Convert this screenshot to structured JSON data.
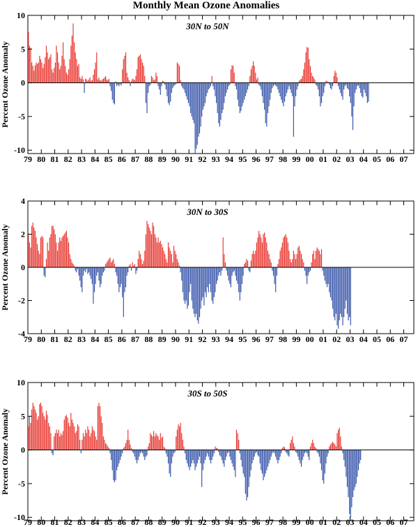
{
  "title": "Monthly Mean Ozone Anomalies",
  "colors": {
    "positive": "#e8362f",
    "negative": "#3553a8",
    "axis": "#000000"
  },
  "chart_data": [
    {
      "type": "bar",
      "title": "30N to 50N",
      "ylabel": "Percent Ozone Anomaly",
      "ylim": [
        -10.5,
        10
      ],
      "yticks": [
        10,
        5,
        0,
        -5,
        -10
      ],
      "xlim": [
        1979.0,
        2007.75
      ],
      "xticks": [
        "79",
        "80",
        "81",
        "82",
        "83",
        "84",
        "85",
        "86",
        "87",
        "88",
        "89",
        "90",
        "91",
        "92",
        "93",
        "94",
        "95",
        "96",
        "97",
        "98",
        "99",
        "00",
        "01",
        "02",
        "03",
        "04",
        "05",
        "06",
        "07"
      ],
      "x_start": "1979-01",
      "x_step": "monthly",
      "values": [
        7.5,
        5.5,
        5.2,
        3.0,
        2.5,
        1.8,
        2.6,
        3.0,
        2.8,
        3.0,
        4.0,
        3.5,
        3.0,
        2.2,
        2.8,
        3.8,
        5.5,
        4.5,
        3.5,
        3.8,
        4.2,
        2.0,
        1.5,
        2.2,
        3.0,
        5.5,
        4.5,
        3.0,
        2.0,
        2.5,
        4.0,
        6.0,
        3.5,
        2.5,
        1.5,
        1.2,
        2.0,
        3.5,
        5.5,
        7.0,
        8.8,
        6.0,
        4.5,
        3.5,
        2.5,
        2.8,
        0.8,
        0.6,
        1.0,
        0.5,
        -1.5,
        0.6,
        0.5,
        0.3,
        0.5,
        0.8,
        0.3,
        0.4,
        1.2,
        2.0,
        3.0,
        4.5,
        0.5,
        0.8,
        0.4,
        0.3,
        0.5,
        0.6,
        0.8,
        1.0,
        0.5,
        0.4,
        0.6,
        -0.5,
        -1.2,
        -2.5,
        -3.0,
        -3.2,
        0.2,
        -0.5,
        -0.3,
        -0.5,
        -0.2,
        -0.4,
        2.0,
        3.5,
        4.0,
        4.5,
        1.5,
        0.8,
        0.4,
        -0.5,
        0.3,
        0.6,
        0.5,
        0.4,
        1.0,
        2.0,
        3.8,
        4.0,
        4.2,
        3.5,
        3.0,
        2.5,
        1.0,
        -3.0,
        -4.5,
        -1.5,
        -0.5,
        -0.3,
        1.0,
        0.8,
        0.4,
        0.5,
        1.5,
        1.0,
        -0.5,
        -1.0,
        -1.8,
        -0.5,
        0.3,
        0.2,
        -0.3,
        -1.0,
        -2.0,
        -3.0,
        -3.3,
        -2.8,
        -1.5,
        -0.8,
        -0.5,
        -0.3,
        -0.2,
        3.0,
        2.8,
        2.5,
        0.4,
        -0.5,
        -0.8,
        -1.0,
        -1.5,
        -2.0,
        -2.5,
        -3.0,
        -3.5,
        -4.5,
        -5.0,
        -5.5,
        -6.0,
        -10.5,
        -9.8,
        -9.2,
        -8.0,
        -7.5,
        -6.5,
        -5.0,
        -4.0,
        -3.5,
        -3.0,
        -2.0,
        -1.5,
        -1.0,
        -0.8,
        -0.5,
        1.0,
        -0.5,
        -1.0,
        -2.0,
        -3.0,
        -4.5,
        -6.0,
        -6.5,
        -5.5,
        -4.5,
        -4.0,
        -3.0,
        -2.0,
        -1.5,
        -1.0,
        -0.5,
        -0.3,
        2.0,
        2.6,
        2.5,
        1.5,
        -0.5,
        -1.0,
        -2.5,
        -3.5,
        -4.5,
        -4.2,
        -3.5,
        -3.0,
        -2.5,
        -2.0,
        -1.5,
        -1.0,
        -0.5,
        1.0,
        2.0,
        2.5,
        3.2,
        2.5,
        1.5,
        0.5,
        0.8,
        -0.3,
        -0.5,
        -1.0,
        -2.0,
        -3.0,
        -4.0,
        -6.0,
        -6.5,
        -4.5,
        -3.5,
        -2.5,
        -1.5,
        -0.8,
        -0.5,
        -0.3,
        -0.4,
        -0.6,
        -1.0,
        -1.5,
        -2.0,
        -2.5,
        -3.0,
        -3.5,
        -2.8,
        -2.0,
        -1.5,
        -1.0,
        -0.5,
        -1.0,
        -1.5,
        -2.0,
        -8.0,
        -3.5,
        -2.0,
        -1.0,
        -0.5,
        0.3,
        0.5,
        0.6,
        1.0,
        2.0,
        3.0,
        4.5,
        5.3,
        5.2,
        3.5,
        2.5,
        1.5,
        1.0,
        0.8,
        0.5,
        -0.3,
        -0.5,
        -1.0,
        -2.0,
        -3.5,
        -3.0,
        -2.0,
        -1.5,
        -0.5,
        0.3,
        0.2,
        0.1,
        -0.3,
        -0.8,
        -1.0,
        -0.5,
        1.0,
        1.8,
        1.5,
        0.8,
        -0.5,
        -1.0,
        -1.5,
        -2.0,
        -2.5,
        -1.0,
        -0.5,
        -0.3,
        -0.8,
        -1.0,
        -2.0,
        -3.0,
        -5.0,
        -7.0,
        -3.5,
        -1.5,
        -1.0,
        -0.5,
        -0.4,
        -0.8,
        -1.5,
        -2.0,
        -2.2,
        -1.0,
        -1.5,
        -2.0,
        -3.0,
        -2.8
      ]
    },
    {
      "type": "bar",
      "title": "30N to 30S",
      "ylabel": "Percent Ozone Anomaly",
      "ylim": [
        -4,
        4
      ],
      "yticks": [
        4,
        2,
        0,
        -2,
        -4
      ],
      "xlim": [
        1979.0,
        2007.75
      ],
      "xticks": [
        "79",
        "80",
        "81",
        "82",
        "83",
        "84",
        "85",
        "86",
        "87",
        "88",
        "89",
        "90",
        "91",
        "92",
        "93",
        "94",
        "95",
        "96",
        "97",
        "98",
        "99",
        "00",
        "01",
        "02",
        "03",
        "04",
        "05",
        "06",
        "07"
      ],
      "x_start": "1979-01",
      "x_step": "monthly",
      "values": [
        2.0,
        1.5,
        1.2,
        2.5,
        2.7,
        2.4,
        2.2,
        1.8,
        1.4,
        1.0,
        0.8,
        1.8,
        1.9,
        1.8,
        -0.5,
        -0.6,
        0.5,
        1.5,
        1.0,
        1.8,
        2.0,
        2.5,
        2.5,
        2.3,
        2.0,
        1.5,
        1.0,
        1.5,
        1.8,
        1.6,
        1.8,
        1.9,
        2.0,
        2.1,
        2.2,
        1.8,
        1.5,
        0.8,
        0.5,
        0.3,
        0.2,
        0.1,
        -0.2,
        -0.3,
        -0.1,
        -0.5,
        -0.8,
        -1.2,
        -1.5,
        -0.5,
        -0.2,
        -0.3,
        -0.1,
        -0.4,
        -0.3,
        -0.5,
        -0.7,
        -1.0,
        -2.2,
        -1.5,
        -1.0,
        -0.5,
        -0.3,
        -0.8,
        -1.2,
        -1.0,
        -0.5,
        -0.3,
        -0.2,
        0.2,
        0.3,
        0.4,
        0.5,
        0.6,
        0.3,
        0.4,
        0.5,
        0.2,
        -0.3,
        -0.5,
        -1.0,
        -1.5,
        -1.2,
        -1.0,
        -1.8,
        -3.0,
        -1.5,
        -1.2,
        -0.5,
        -0.3,
        0.1,
        0.2,
        -0.2,
        0.3,
        0.1,
        0.2,
        -0.4,
        -0.2,
        0.5,
        1.0,
        0.8,
        0.5,
        0.2,
        0.4,
        1.0,
        2.0,
        2.8,
        2.6,
        2.4,
        2.2,
        2.0,
        2.7,
        2.5,
        2.0,
        1.8,
        1.5,
        1.8,
        1.5,
        1.6,
        1.4,
        1.2,
        1.0,
        0.8,
        0.5,
        0.3,
        1.5,
        1.2,
        1.0,
        0.8,
        0.3,
        1.3,
        1.0,
        0.8,
        0.5,
        0.3,
        0.1,
        -0.3,
        -0.8,
        -1.5,
        -2.0,
        -2.2,
        -2.0,
        -2.5,
        -2.3,
        -1.5,
        -1.0,
        -2.0,
        -2.5,
        -2.8,
        -3.0,
        -2.8,
        -3.2,
        -3.4,
        -3.0,
        -2.5,
        -2.0,
        -1.8,
        -2.3,
        -1.5,
        -1.8,
        -1.2,
        -1.5,
        -1.0,
        -1.5,
        -2.0,
        -2.2,
        -1.8,
        -1.5,
        -1.0,
        -0.8,
        -0.5,
        -0.3,
        -0.5,
        -0.2,
        1.8,
        0.8,
        0.3,
        -0.2,
        -0.5,
        -0.8,
        -1.0,
        -1.2,
        -0.5,
        -0.3,
        -0.2,
        -0.5,
        -0.8,
        -1.0,
        -1.5,
        -2.0,
        -1.5,
        -1.0,
        -0.5,
        0.2,
        0.3,
        0.5,
        0.4,
        -0.2,
        -0.3,
        0.4,
        0.8,
        1.0,
        0.8,
        1.0,
        1.5,
        1.8,
        2.2,
        2.0,
        1.8,
        1.5,
        2.0,
        2.1,
        1.8,
        1.5,
        1.0,
        0.8,
        0.5,
        0.3,
        -0.2,
        -0.5,
        -1.0,
        -1.5,
        -0.5,
        0.2,
        0.5,
        1.0,
        1.2,
        1.5,
        1.8,
        1.9,
        2.0,
        1.8,
        1.5,
        1.0,
        0.5,
        0.3,
        0.5,
        1.0,
        0.8,
        0.5,
        0.8,
        1.2,
        1.3,
        1.0,
        0.8,
        0.5,
        0.3,
        -0.2,
        -0.5,
        -1.0,
        -0.5,
        -0.3,
        -0.2,
        0.3,
        0.8,
        1.0,
        0.5,
        1.0,
        1.2,
        1.1,
        1.0,
        0.8,
        1.1,
        -0.2,
        -0.5,
        -0.8,
        -1.0,
        -1.2,
        -1.0,
        -1.5,
        -1.8,
        -2.0,
        -2.5,
        -3.0,
        -3.2,
        -2.8,
        -3.5,
        -3.7,
        -3.2,
        -2.8,
        -3.0,
        -3.5,
        -3.0,
        -2.5,
        -2.0,
        -2.8,
        -3.2,
        -3.0,
        -3.5
      ]
    },
    {
      "type": "bar",
      "title": "30S to 50S",
      "ylabel": "Percent Ozone Anomaly",
      "ylim": [
        -10.5,
        10
      ],
      "yticks": [
        10,
        5,
        0,
        -5,
        -10
      ],
      "xlim": [
        1979.0,
        2007.75
      ],
      "xticks": [
        "79",
        "80",
        "81",
        "82",
        "83",
        "84",
        "85",
        "86",
        "87",
        "88",
        "89",
        "90",
        "91",
        "92",
        "93",
        "94",
        "95",
        "96",
        "97",
        "98",
        "99",
        "00",
        "01",
        "02",
        "03",
        "04",
        "05",
        "06",
        "07"
      ],
      "x_start": "1979-01",
      "x_step": "monthly",
      "values": [
        3.5,
        5.0,
        4.0,
        6.0,
        7.0,
        6.5,
        6.0,
        5.5,
        4.5,
        5.0,
        6.8,
        7.0,
        6.5,
        5.5,
        5.0,
        4.5,
        5.8,
        5.2,
        4.0,
        3.5,
        2.5,
        -0.5,
        -0.8,
        2.0,
        2.5,
        3.0,
        2.5,
        3.0,
        2.0,
        2.5,
        2.2,
        2.8,
        4.5,
        5.0,
        5.2,
        4.8,
        4.0,
        3.5,
        5.5,
        4.5,
        4.0,
        3.5,
        2.5,
        2.8,
        3.8,
        3.5,
        1.5,
        -0.5,
        1.5,
        2.5,
        2.0,
        3.0,
        2.5,
        3.5,
        3.0,
        2.0,
        2.5,
        3.5,
        3.0,
        2.8,
        2.0,
        1.5,
        6.5,
        7.0,
        6.5,
        5.0,
        4.0,
        2.0,
        1.5,
        1.0,
        0.8,
        0.5,
        0.3,
        -0.5,
        -1.5,
        -3.0,
        -4.5,
        -4.8,
        -4.5,
        -3.0,
        -2.5,
        -2.0,
        -1.5,
        -1.0,
        -0.5,
        0.3,
        0.5,
        1.0,
        1.5,
        3.0,
        1.5,
        0.8,
        0.3,
        -0.3,
        -0.5,
        -1.0,
        -1.5,
        -2.0,
        -1.5,
        -1.0,
        -0.5,
        -0.3,
        -0.5,
        -1.0,
        -1.5,
        -1.0,
        -0.8,
        0.5,
        1.0,
        2.5,
        2.2,
        2.0,
        2.8,
        2.0,
        2.5,
        2.2,
        2.0,
        1.5,
        2.5,
        1.8,
        2.0,
        0.5,
        0.3,
        -0.5,
        -1.0,
        -2.0,
        -3.5,
        -4.0,
        -2.0,
        -1.0,
        -0.5,
        -0.3,
        2.0,
        3.0,
        3.8,
        3.5,
        4.0,
        2.5,
        1.5,
        0.5,
        -0.5,
        -1.5,
        -2.0,
        -2.5,
        -3.0,
        -2.5,
        -2.0,
        -1.5,
        -2.0,
        -3.0,
        -2.5,
        -2.0,
        -1.5,
        -1.0,
        -2.0,
        -5.5,
        -3.0,
        -2.0,
        -1.5,
        -1.0,
        -0.5,
        -1.0,
        -1.5,
        -2.0,
        -1.5,
        -1.0,
        -0.5,
        0.5,
        0.3,
        0.2,
        -0.3,
        -0.8,
        -1.0,
        -1.5,
        -2.0,
        -2.5,
        -1.5,
        -1.0,
        -0.5,
        -0.3,
        -1.0,
        -1.5,
        -2.0,
        -2.5,
        -3.0,
        -4.0,
        3.0,
        2.5,
        1.5,
        -0.5,
        -1.5,
        -2.5,
        -3.5,
        -4.0,
        -6.5,
        -7.5,
        -7.0,
        -5.5,
        -4.0,
        -3.0,
        -2.0,
        -1.5,
        -1.0,
        -0.5,
        -0.3,
        -0.8,
        -1.0,
        -2.0,
        -3.0,
        -3.5,
        -4.5,
        -4.0,
        -3.5,
        -3.0,
        -2.5,
        -2.0,
        -1.5,
        -1.0,
        -0.5,
        -0.3,
        -0.5,
        -1.0,
        -1.5,
        -2.0,
        -1.5,
        -1.0,
        -0.5,
        0.3,
        0.5,
        0.4,
        -0.3,
        -0.5,
        -0.8,
        -1.0,
        1.0,
        1.5,
        2.0,
        1.0,
        0.5,
        -0.3,
        -0.5,
        -1.0,
        -1.5,
        -2.0,
        -2.5,
        -1.5,
        -1.0,
        -0.5,
        -0.3,
        -0.5,
        -1.0,
        -1.5,
        0.5,
        1.0,
        1.5,
        1.0,
        0.5,
        0.3,
        -0.3,
        -0.5,
        -1.0,
        -2.0,
        -3.0,
        -4.5,
        -5.0,
        -3.5,
        -2.0,
        -1.0,
        -0.5,
        0.5,
        0.8,
        1.0,
        1.2,
        1.0,
        0.8,
        0.5,
        2.5,
        3.0,
        3.3,
        2.0,
        0.5,
        -0.5,
        -1.5,
        -2.5,
        -4.0,
        -5.5,
        -7.0,
        -9.5,
        -10.0,
        -8.5,
        -7.0,
        -6.0,
        -5.5,
        -5.0,
        -4.0,
        -3.0,
        -2.0,
        -1.5
      ]
    }
  ]
}
